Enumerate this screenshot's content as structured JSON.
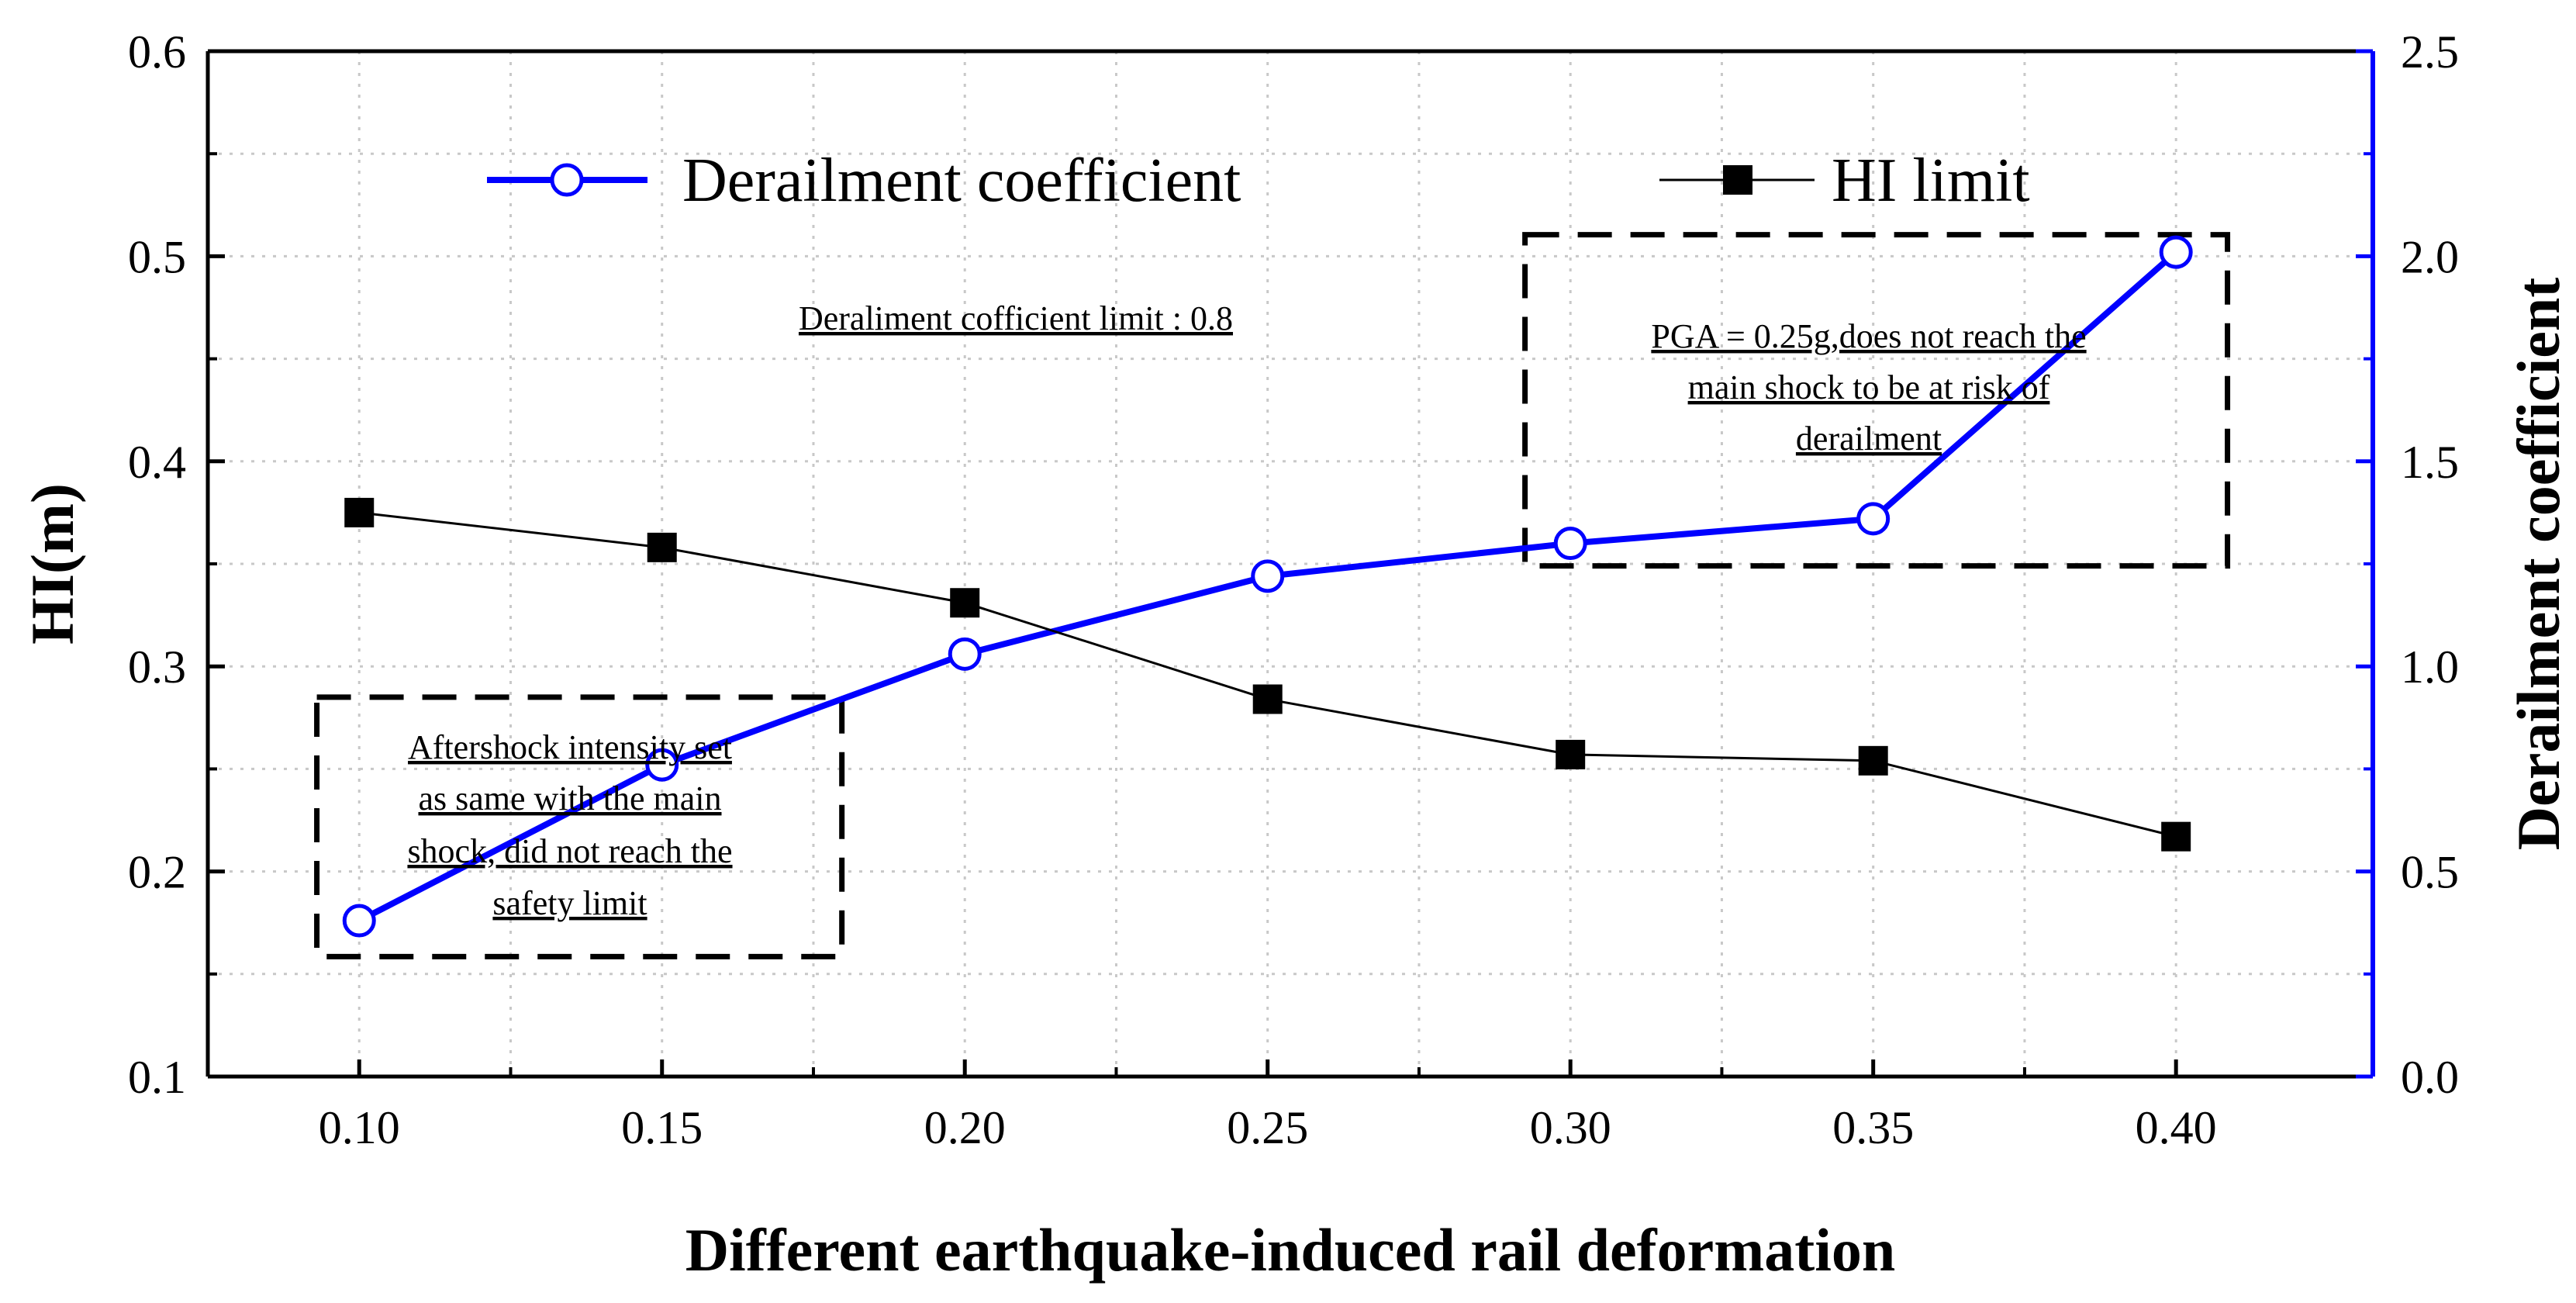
{
  "chart_data": {
    "type": "line",
    "title": "",
    "xlabel": "Different earthquake-induced rail deformation",
    "ylabel_left": "HI(m)",
    "ylabel_right": "Derailment coefficient",
    "x": [
      0.1,
      0.15,
      0.2,
      0.25,
      0.3,
      0.35,
      0.4
    ],
    "x_tick_labels": [
      "0.10",
      "0.15",
      "0.20",
      "0.25",
      "0.30",
      "0.35",
      "0.40"
    ],
    "xlim": [
      0.075,
      0.4325
    ],
    "ylim_left": [
      0.1,
      0.6
    ],
    "y_left_ticks": [
      "0.1",
      "0.2",
      "0.3",
      "0.4",
      "0.5",
      "0.6"
    ],
    "ylim_right": [
      0.0,
      2.5
    ],
    "y_right_ticks": [
      "0.0",
      "0.5",
      "1.0",
      "1.5",
      "2.0",
      "2.5"
    ],
    "grid": true,
    "series": [
      {
        "name": "Derailment coefficient",
        "axis": "right",
        "color": "#0000ff",
        "marker": "open-circle",
        "values": [
          0.38,
          0.76,
          1.03,
          1.22,
          1.3,
          1.36,
          2.01
        ]
      },
      {
        "name": "HI limit",
        "axis": "left",
        "color": "#000000",
        "marker": "filled-square",
        "values": [
          0.375,
          0.358,
          0.331,
          0.284,
          0.257,
          0.254,
          0.217
        ]
      }
    ],
    "legend_position": "top",
    "annotations": [
      {
        "id": "derail-limit",
        "lines": [
          "Deraliment cofficient limit : 0.8"
        ],
        "boxed": false
      },
      {
        "id": "aftershock-box",
        "lines": [
          "Aftershock intensity set",
          "as same with the main",
          "shock, did not reach the",
          "safety limit"
        ],
        "boxed": true,
        "x_range": [
          0.093,
          0.1797
        ],
        "y_range_left": [
          0.1585,
          0.285
        ]
      },
      {
        "id": "pga-box",
        "lines": [
          "PGA = 0.25g,does not reach the",
          "main shock to be at risk of",
          "derailment"
        ],
        "boxed": true,
        "x_range": [
          0.2925,
          0.4085
        ],
        "y_range_left": [
          0.349,
          0.5105
        ]
      }
    ]
  }
}
